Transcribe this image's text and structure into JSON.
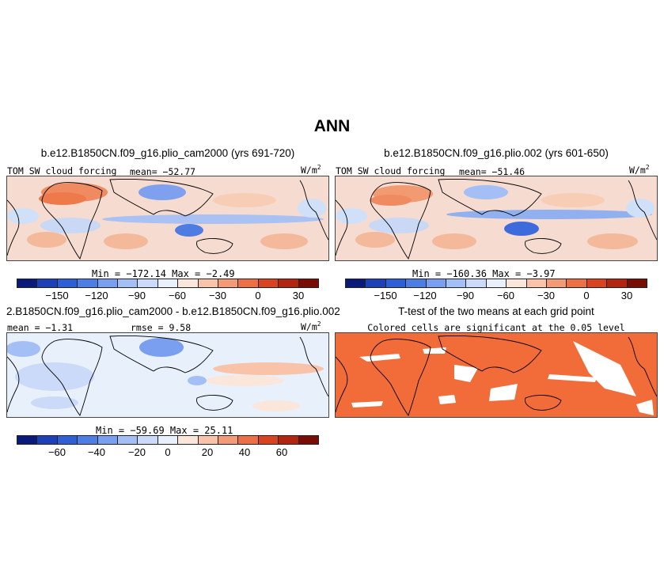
{
  "title": "ANN",
  "panels": {
    "p1": {
      "title": "b.e12.B1850CN.f09_g16.plio_cam2000 (yrs 691-720)",
      "variable": "TOM SW cloud forcing",
      "mean": "mean= −52.77",
      "units": "W/m",
      "units_sup": "2",
      "minmax": "Min = −172.14  Max =  −2.49"
    },
    "p2": {
      "title": "b.e12.B1850CN.f09_g16.plio.002 (yrs 601-650)",
      "variable": "TOM SW cloud forcing",
      "mean": "mean= −51.46",
      "units": "W/m",
      "units_sup": "2",
      "minmax": "Min = −160.36  Max =  −3.97"
    },
    "p3": {
      "title": "2.B1850CN.f09_g16.plio_cam2000 - b.e12.B1850CN.f09_g16.plio.002",
      "mean": "mean =  −1.31",
      "rmse": "rmse =   9.58",
      "units": "W/m",
      "units_sup": "2",
      "minmax": "Min = −59.69  Max =  25.11"
    },
    "p4": {
      "title": "T-test of the two means at each grid point",
      "subtitle": "Colored cells are significant at the 0.05 level"
    }
  },
  "colorbars": {
    "abs": {
      "ticks": [
        "−150",
        "−120",
        "−90",
        "−60",
        "−30",
        "0",
        "30"
      ]
    },
    "diff": {
      "ticks": [
        "−60",
        "−40",
        "−20",
        "0",
        "20",
        "40",
        "60"
      ]
    },
    "colors": [
      "#0a1a7a",
      "#1d3fb8",
      "#2f5fd6",
      "#4d7ee6",
      "#7a9ff0",
      "#a3bff5",
      "#cbdaf8",
      "#e8f0fc",
      "#fbe6dc",
      "#f8c3a8",
      "#f39a76",
      "#ee6f45",
      "#d9431f",
      "#b3250f",
      "#7a0c06"
    ]
  },
  "colors": {
    "ttest_fill": "#f26c3a",
    "coast": "#000000"
  }
}
